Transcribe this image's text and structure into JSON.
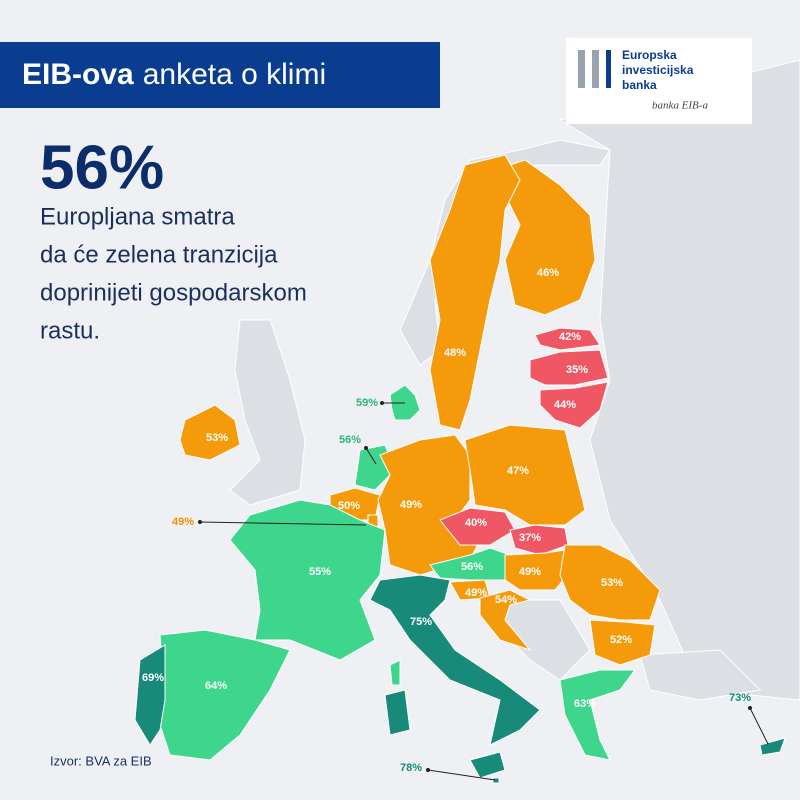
{
  "header": {
    "title_bold": "EIB-ova",
    "title_rest": "anketa o klimi"
  },
  "logo": {
    "lines": [
      "Europska",
      "investicijska",
      "banka"
    ],
    "signature": "banka EIB-a"
  },
  "headline": {
    "figure": "56%",
    "text_lines": [
      "Europljana smatra",
      "da će zelena tranzicija",
      "doprinijeti gospodarskom",
      "rastu."
    ]
  },
  "map": {
    "labels": [
      "46%",
      "48%",
      "42%",
      "35%",
      "44%",
      "59%",
      "53%",
      "56%",
      "50%",
      "49%",
      "49%",
      "47%",
      "40%",
      "37%",
      "56%",
      "49%",
      "53%",
      "49%",
      "54%",
      "52%",
      "55%",
      "75%",
      "69%",
      "64%",
      "63%",
      "73%",
      "78%"
    ]
  },
  "source": "Izvor: BVA za EIB"
}
